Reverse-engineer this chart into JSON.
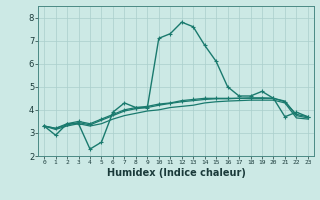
{
  "xlabel": "Humidex (Indice chaleur)",
  "x_values": [
    0,
    1,
    2,
    3,
    4,
    5,
    6,
    7,
    8,
    9,
    10,
    11,
    12,
    13,
    14,
    15,
    16,
    17,
    18,
    19,
    20,
    21,
    22,
    23
  ],
  "series": [
    {
      "y": [
        3.3,
        2.9,
        3.4,
        3.4,
        2.3,
        2.6,
        3.9,
        4.3,
        4.1,
        4.1,
        7.1,
        7.3,
        7.8,
        7.6,
        6.8,
        6.1,
        5.0,
        4.6,
        4.6,
        4.8,
        4.5,
        3.7,
        3.9,
        3.7
      ],
      "color": "#1a7a6e",
      "linewidth": 1.0,
      "marker": "+",
      "markersize": 3.5,
      "linestyle": "solid"
    },
    {
      "y": [
        3.3,
        3.2,
        3.4,
        3.5,
        3.4,
        3.6,
        3.8,
        4.0,
        4.1,
        4.15,
        4.25,
        4.3,
        4.4,
        4.45,
        4.5,
        4.5,
        4.5,
        4.5,
        4.5,
        4.5,
        4.5,
        4.35,
        3.8,
        3.7
      ],
      "color": "#1a7a6e",
      "linewidth": 0.9,
      "marker": "+",
      "markersize": 3.0,
      "linestyle": "solid"
    },
    {
      "y": [
        3.3,
        3.2,
        3.35,
        3.45,
        3.35,
        3.55,
        3.75,
        3.95,
        4.05,
        4.1,
        4.2,
        4.28,
        4.35,
        4.4,
        4.45,
        4.48,
        4.48,
        4.5,
        4.52,
        4.52,
        4.5,
        4.38,
        3.75,
        3.65
      ],
      "color": "#1a7a6e",
      "linewidth": 0.9,
      "marker": null,
      "markersize": 0,
      "linestyle": "solid"
    },
    {
      "y": [
        3.3,
        3.15,
        3.3,
        3.4,
        3.3,
        3.4,
        3.6,
        3.75,
        3.85,
        3.95,
        4.0,
        4.1,
        4.15,
        4.2,
        4.3,
        4.35,
        4.38,
        4.4,
        4.42,
        4.42,
        4.42,
        4.3,
        3.65,
        3.6
      ],
      "color": "#1a7a6e",
      "linewidth": 0.9,
      "marker": null,
      "markersize": 0,
      "linestyle": "solid"
    }
  ],
  "ylim": [
    2.0,
    8.5
  ],
  "xlim": [
    -0.5,
    23.5
  ],
  "yticks": [
    2,
    3,
    4,
    5,
    6,
    7,
    8
  ],
  "xtick_labels": [
    "0",
    "1",
    "2",
    "3",
    "4",
    "5",
    "6",
    "7",
    "8",
    "9",
    "10",
    "11",
    "12",
    "13",
    "14",
    "15",
    "16",
    "17",
    "18",
    "19",
    "20",
    "21",
    "22",
    "23"
  ],
  "bg_color": "#cce9e5",
  "grid_color": "#aacfcc",
  "line_color": "#1a7a6e"
}
